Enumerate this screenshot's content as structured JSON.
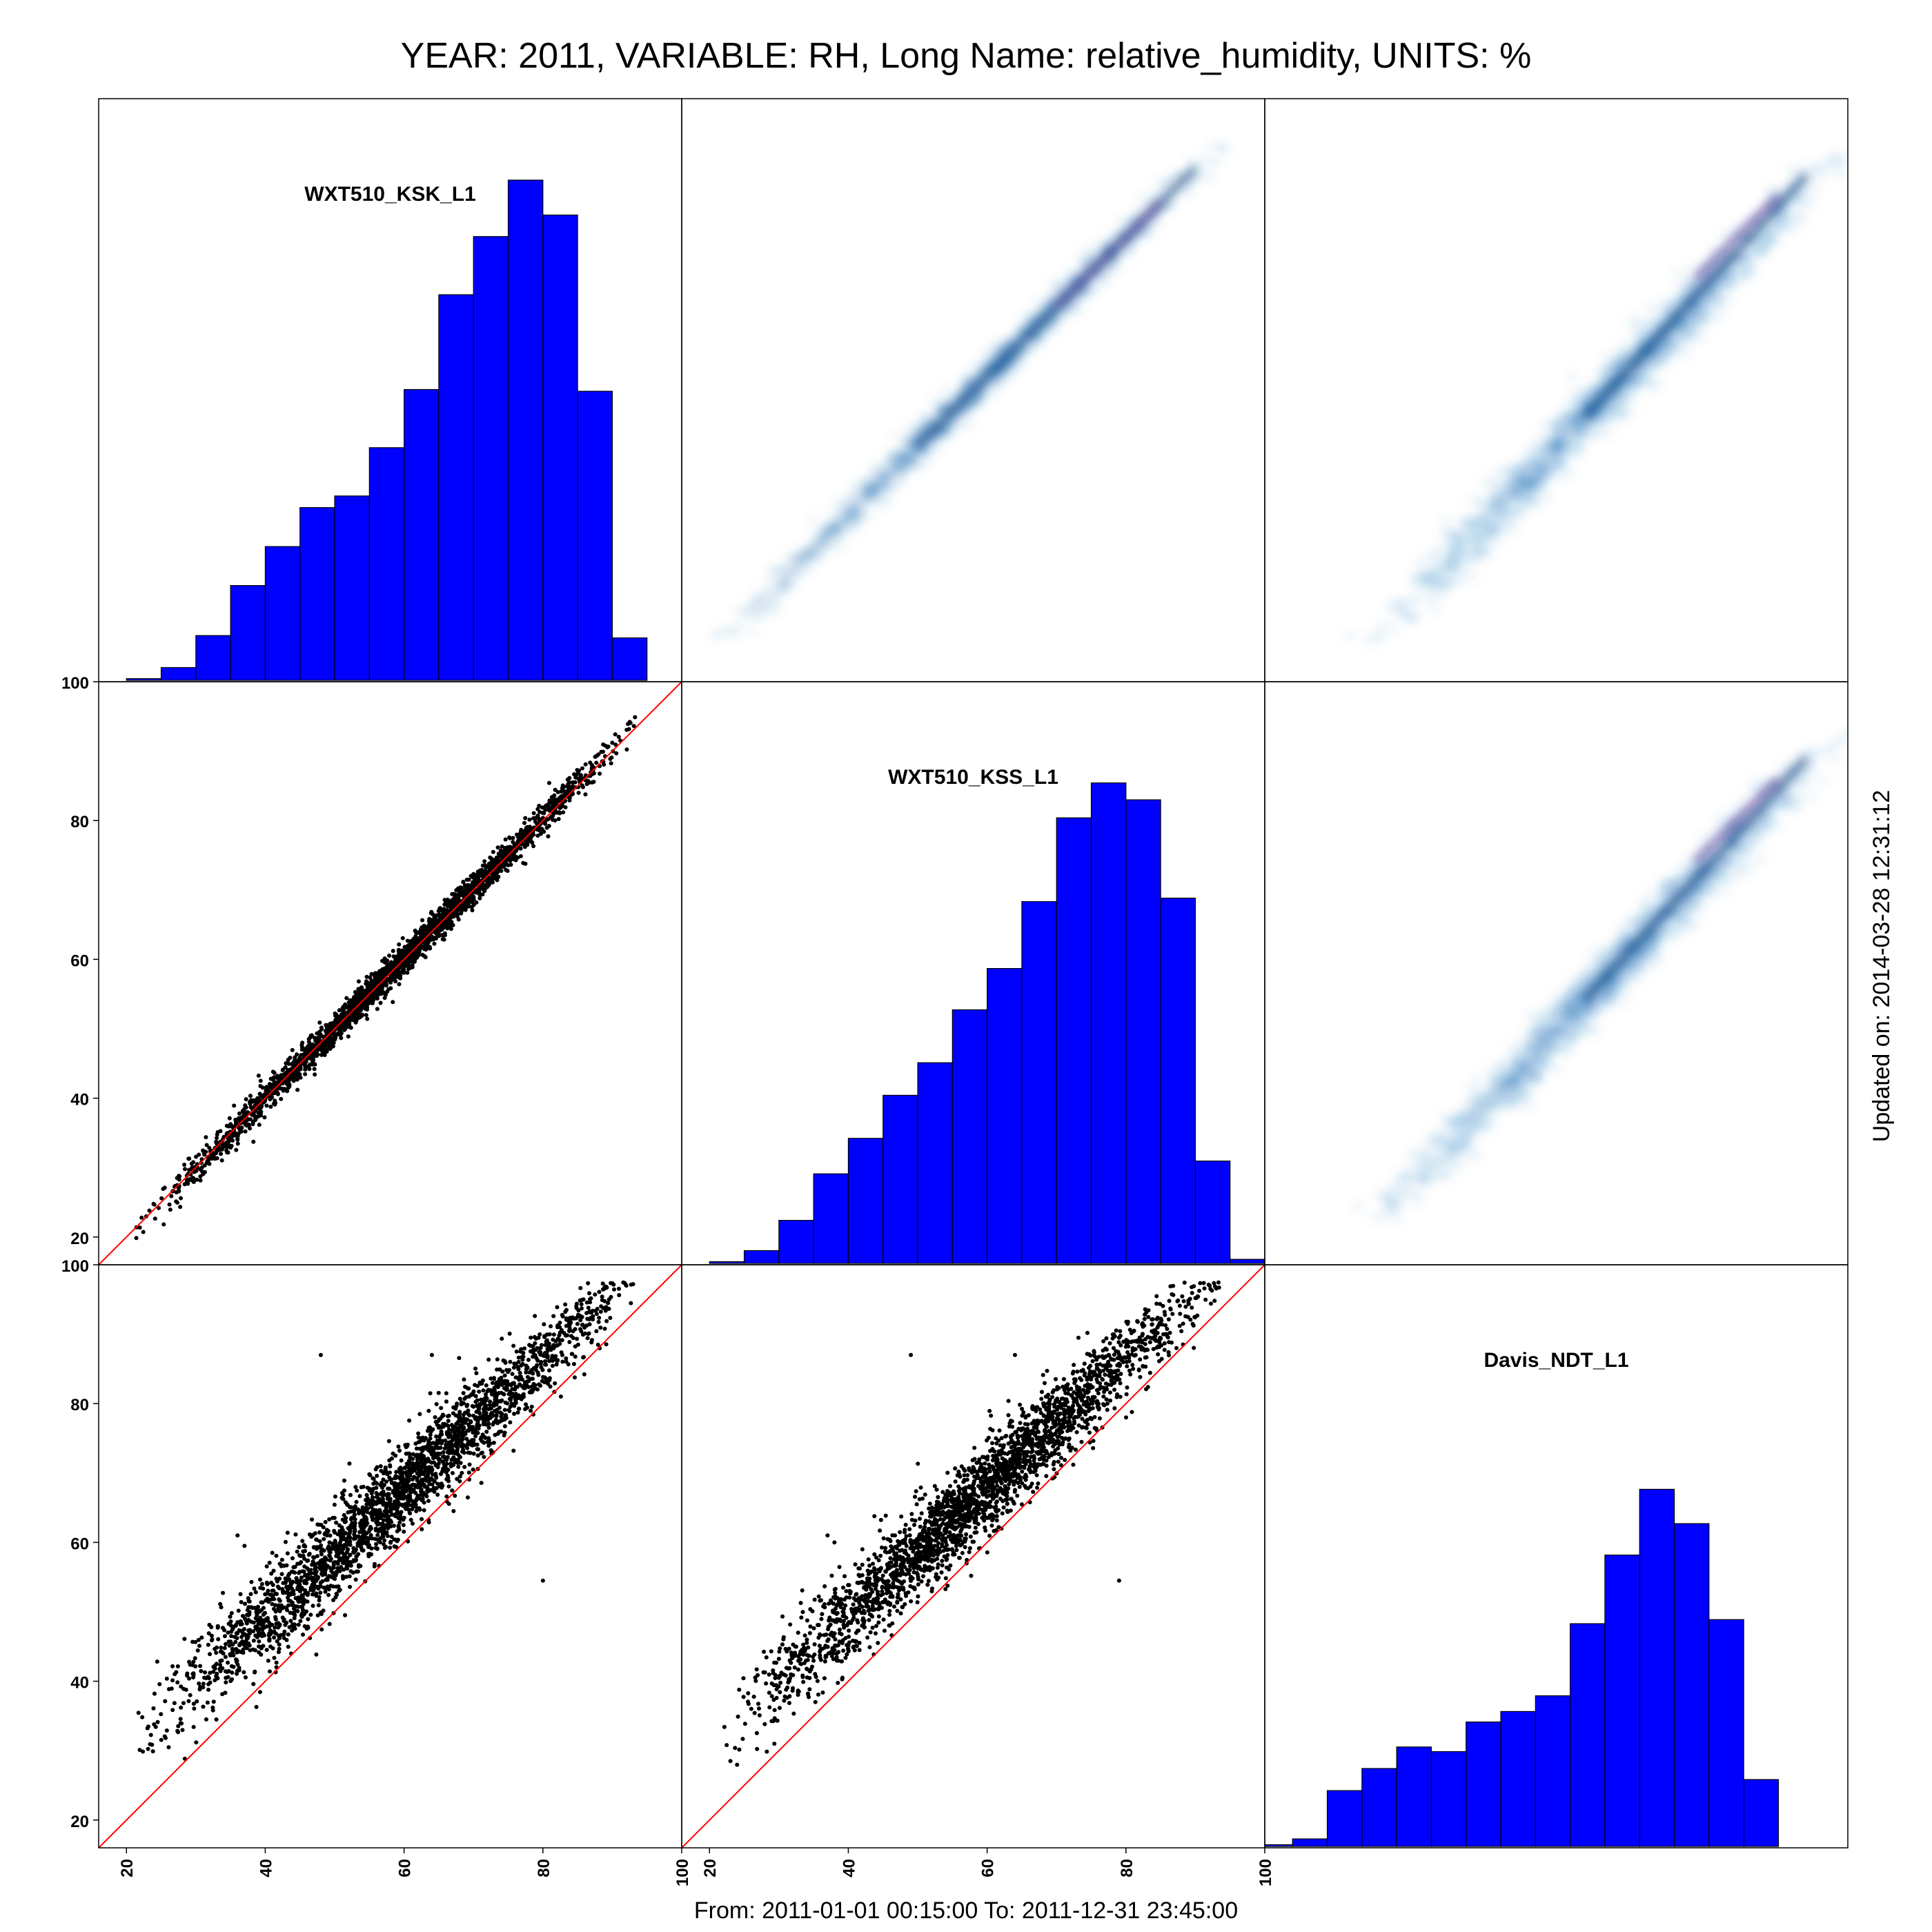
{
  "page": {
    "title": "YEAR: 2011, VARIABLE: RH, Long Name: relative_humidity, UNITS: %",
    "footer": "From: 2011-01-01 00:15:00 To: 2011-12-31 23:45:00",
    "updated": "Updated on: 2014-03-28 12:31:12"
  },
  "chart_data": {
    "type": "scatter",
    "matrix": "pairs",
    "variables": [
      "WXT510_KSK_L1",
      "WXT510_KSS_L1",
      "Davis_NDT_L1"
    ],
    "axis_ticks": [
      20,
      40,
      60,
      80,
      100
    ],
    "axis_range": [
      16,
      100
    ],
    "grid": false,
    "colors": {
      "histogram": "#0000ff",
      "histogram_edge": "#000000",
      "identity_line": "#ff0000",
      "points": "#000000",
      "density_low": "#c6dbef",
      "density_mid": "#2171b5",
      "density_high": "#08306b",
      "density_peak": "#6a3d9a"
    },
    "histograms": [
      {
        "variable": "WXT510_KSK_L1",
        "bin_width": 5,
        "bin_starts": [
          20,
          25,
          30,
          35,
          40,
          45,
          50,
          55,
          60,
          65,
          70,
          75,
          80,
          85,
          90
        ],
        "relative_heights": [
          0.3,
          2.2,
          7.7,
          16.3,
          23.0,
          29.7,
          31.7,
          40.0,
          50.0,
          66.3,
          76.3,
          86.0,
          80.0,
          49.7,
          7.3
        ]
      },
      {
        "variable": "WXT510_KSS_L1",
        "bin_width": 5,
        "bin_starts": [
          20,
          25,
          30,
          35,
          40,
          45,
          50,
          55,
          60,
          65,
          70,
          75,
          80,
          85,
          90,
          95
        ],
        "relative_heights": [
          0.3,
          2.2,
          7.4,
          15.4,
          21.5,
          28.9,
          34.5,
          43.6,
          50.7,
          62.2,
          76.6,
          82.6,
          79.7,
          62.8,
          17.6,
          0.7
        ]
      },
      {
        "variable": "Davis_NDT_L1",
        "bin_width": 5,
        "bin_starts": [
          15,
          20,
          25,
          30,
          35,
          40,
          45,
          50,
          55,
          60,
          65,
          70,
          75,
          80,
          85,
          90
        ],
        "relative_heights": [
          0.3,
          1.3,
          9.6,
          13.4,
          17.1,
          16.3,
          21.4,
          23.2,
          25.9,
          38.3,
          50.1,
          61.4,
          55.5,
          39.0,
          11.5,
          0
        ]
      }
    ],
    "scatter_panels": [
      {
        "x_variable": "WXT510_KSK_L1",
        "y_variable": "WXT510_KSS_L1",
        "relation": "y ≈ 1.01·x − 0.5",
        "x_range": [
          21,
          94
        ],
        "spread": 1.1,
        "outliers": []
      },
      {
        "x_variable": "WXT510_KSK_L1",
        "y_variable": "Davis_NDT_L1",
        "relation": "y ≈ 0.93·x + 12",
        "x_range": [
          21,
          94
        ],
        "spread": 3.2,
        "outliers": [
          [
            48,
            87
          ],
          [
            64,
            87
          ],
          [
            36,
            61
          ],
          [
            80,
            54.5
          ],
          [
            37,
            59.5
          ]
        ]
      },
      {
        "x_variable": "WXT510_KSS_L1",
        "y_variable": "Davis_NDT_L1",
        "relation": "y ≈ 0.93·x + 12",
        "x_range": [
          21,
          94
        ],
        "spread": 3.2,
        "outliers": [
          [
            49,
            87
          ],
          [
            64,
            87
          ],
          [
            37,
            61
          ],
          [
            79,
            54.5
          ],
          [
            38,
            60
          ]
        ]
      }
    ],
    "density_panels": [
      {
        "x_variable": "WXT510_KSS_L1",
        "y_variable": "WXT510_KSK_L1",
        "spread": 1.1
      },
      {
        "x_variable": "Davis_NDT_L1",
        "y_variable": "WXT510_KSK_L1",
        "spread": 3.2
      },
      {
        "x_variable": "Davis_NDT_L1",
        "y_variable": "WXT510_KSS_L1",
        "spread": 3.2
      }
    ]
  }
}
